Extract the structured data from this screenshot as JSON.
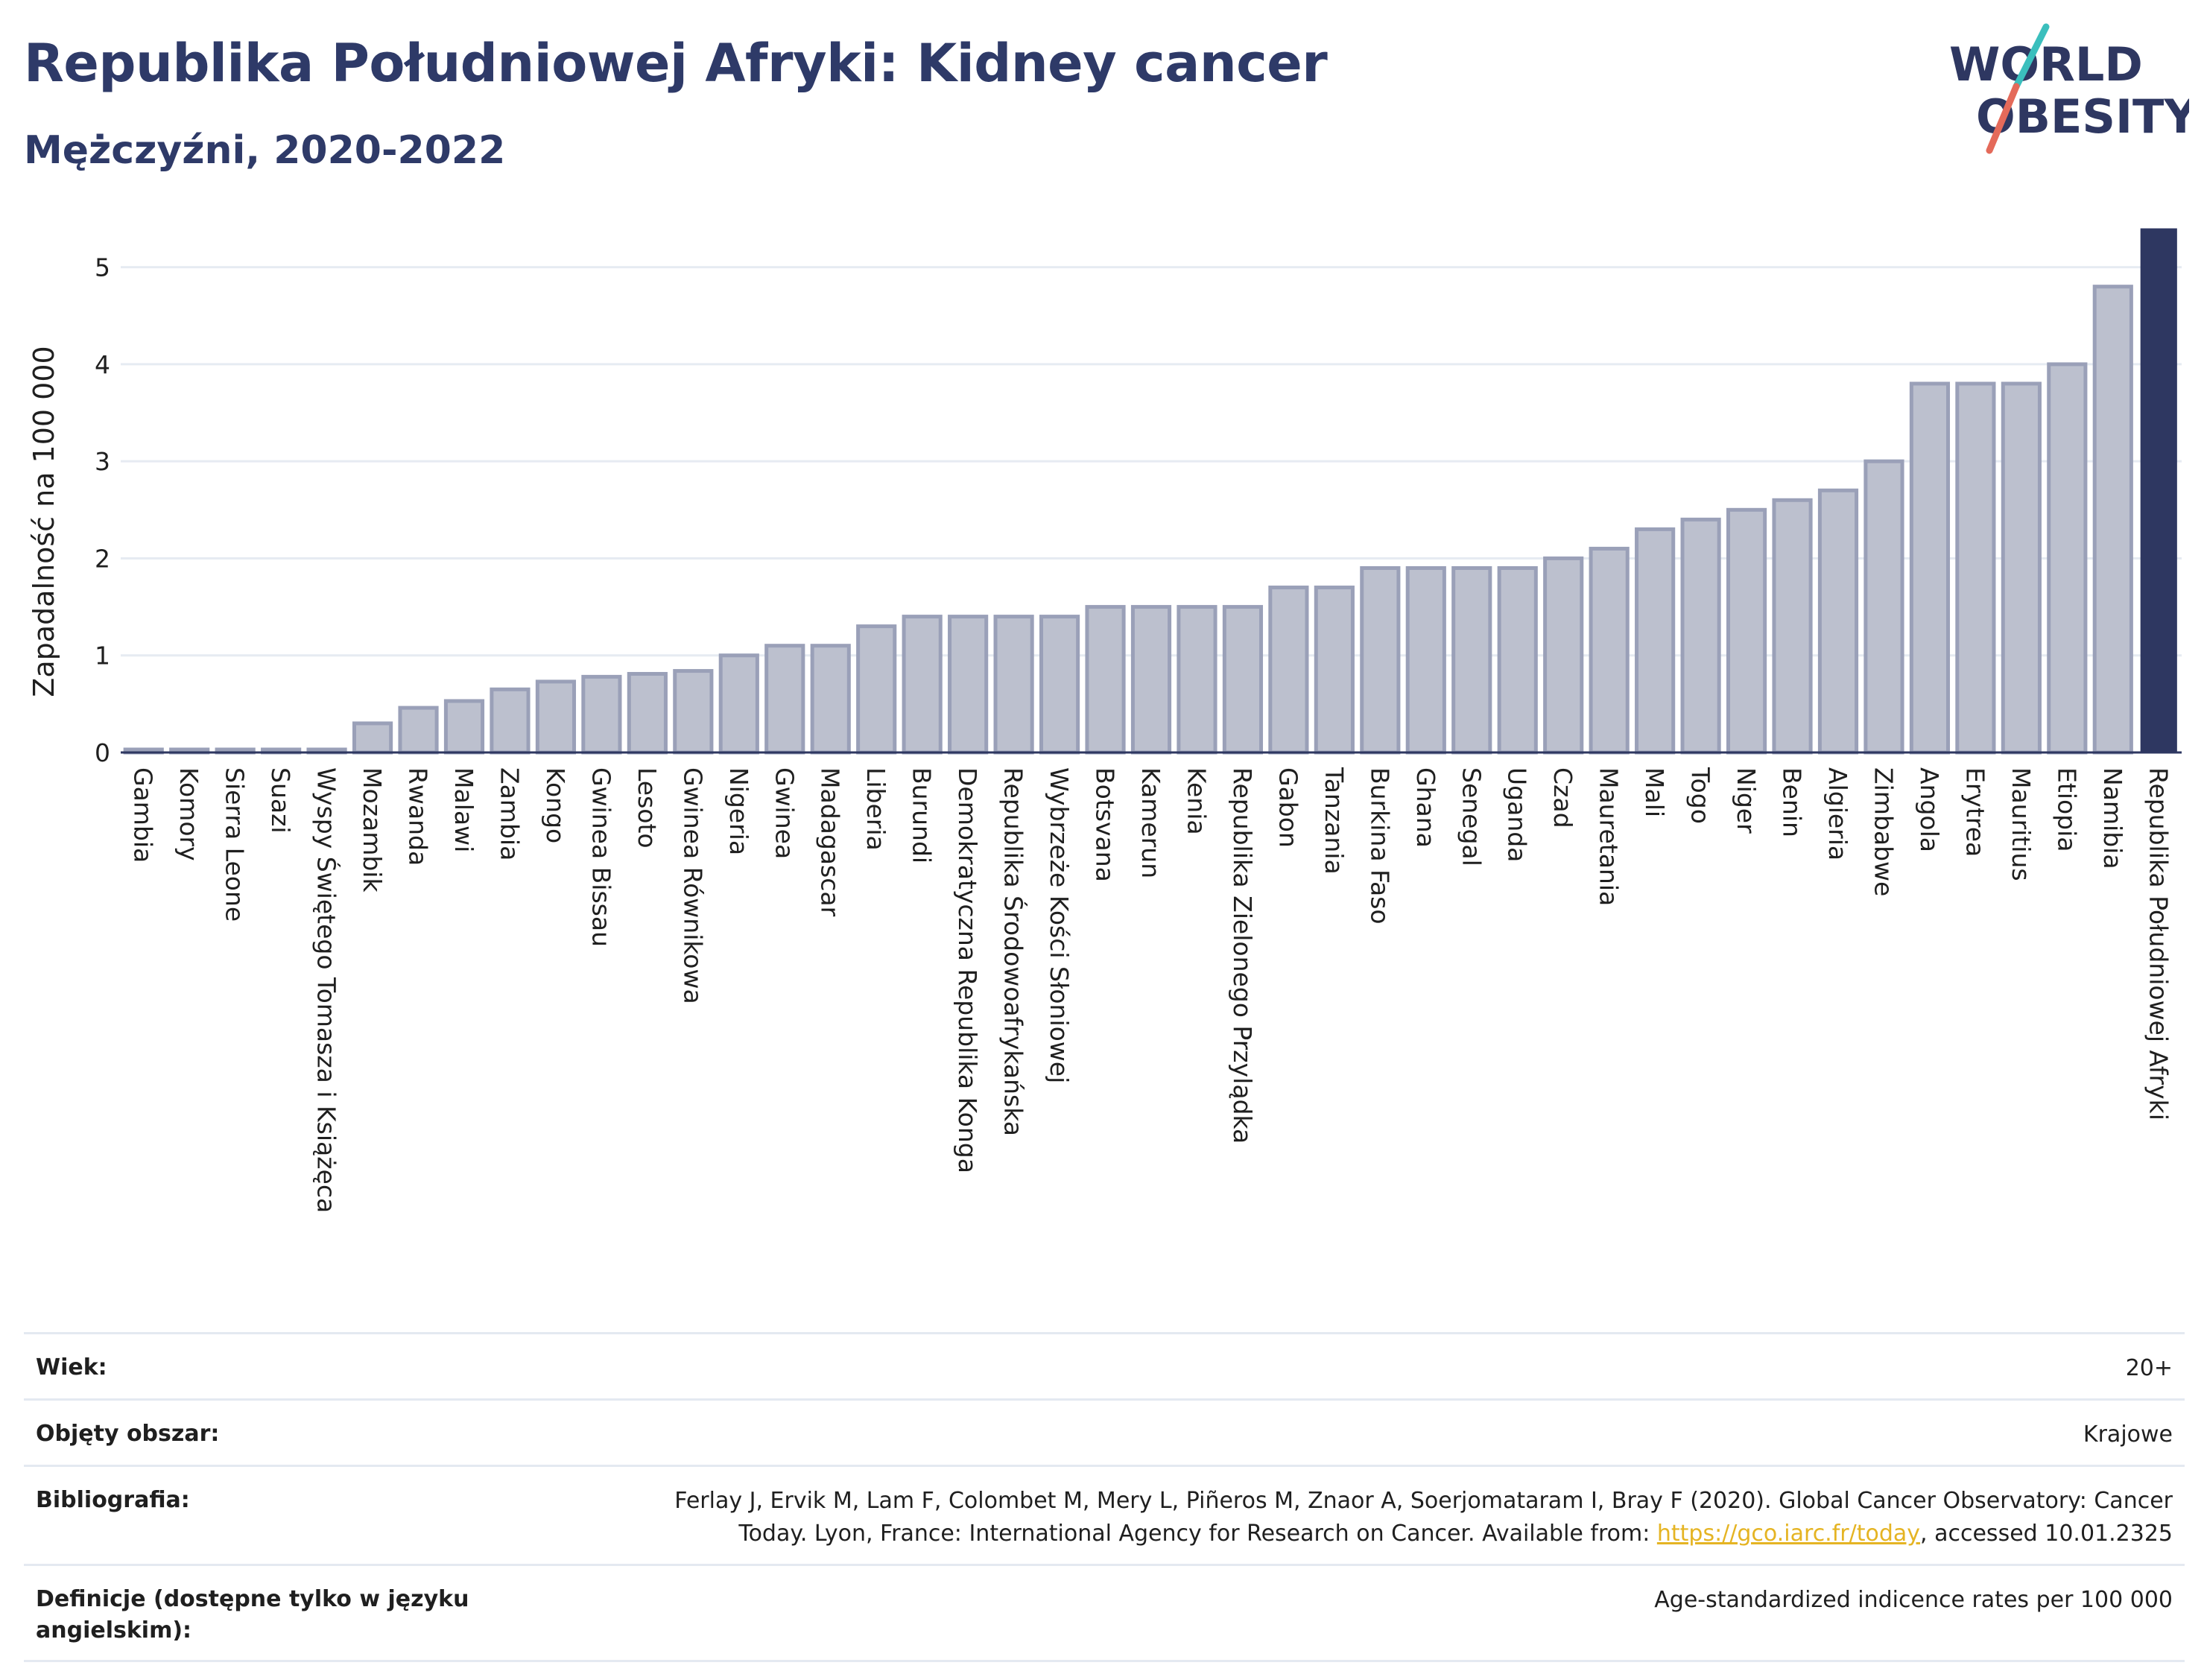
{
  "header": {
    "title": "Republika Południowej Afryki: Kidney cancer",
    "subtitle": "Mężczyźni, 2020-2022"
  },
  "logo": {
    "line1": "WORLD",
    "line2": "OBESITY",
    "accent_teal": "#3bbfbd",
    "accent_coral": "#e46a5a"
  },
  "chart_data": {
    "type": "bar",
    "ylabel": "Zapadalność na 100 000",
    "xlabel": "",
    "ylim": [
      0,
      5.45
    ],
    "yticks": [
      0,
      1,
      2,
      3,
      4,
      5
    ],
    "grid": true,
    "bar_color": "#bcc0ce",
    "bar_edge_color": "#9aa0b8",
    "highlight_color": "#2e3761",
    "highlight_category": "Republika Południowej Afryki",
    "categories": [
      "Gambia",
      "Komory",
      "Sierra Leone",
      "Suazi",
      "Wyspy Świętego Tomasza i Książęca",
      "Mozambik",
      "Rwanda",
      "Malawi",
      "Zambia",
      "Kongo",
      "Gwinea Bissau",
      "Lesoto",
      "Gwinea Równikowa",
      "Nigeria",
      "Gwinea",
      "Madagascar",
      "Liberia",
      "Burundi",
      "Demokratyczna Republika Konga",
      "Republika Środowoafrykańska",
      "Wybrzeże Kości Słoniowej",
      "Botsvana",
      "Kamerun",
      "Kenia",
      "Republika Zielonego Przylądka",
      "Gabon",
      "Tanzania",
      "Burkina Faso",
      "Ghana",
      "Senegal",
      "Uganda",
      "Czad",
      "Mauretania",
      "Mali",
      "Togo",
      "Niger",
      "Benin",
      "Algieria",
      "Zimbabwe",
      "Angola",
      "Erytrea",
      "Mauritius",
      "Etiopia",
      "Namibia",
      "Republika Południowej Afryki"
    ],
    "values": [
      0.0,
      0.0,
      0.0,
      0.0,
      0.0,
      0.3,
      0.46,
      0.53,
      0.65,
      0.73,
      0.78,
      0.81,
      0.84,
      1.0,
      1.1,
      1.1,
      1.3,
      1.4,
      1.4,
      1.4,
      1.4,
      1.5,
      1.5,
      1.5,
      1.5,
      1.7,
      1.7,
      1.9,
      1.9,
      1.9,
      1.9,
      2.0,
      2.1,
      2.3,
      2.4,
      2.5,
      2.6,
      2.7,
      3.0,
      3.8,
      3.8,
      3.8,
      4.0,
      4.8,
      5.4
    ]
  },
  "meta": [
    {
      "label": "Wiek:",
      "value": "20+"
    },
    {
      "label": "Objęty obszar:",
      "value": "Krajowe"
    },
    {
      "label": "Bibliografia:",
      "value_line1": "Ferlay J, Ervik M, Lam F, Colombet M, Mery L, Piñeros M, Znaor A, Soerjomataram I, Bray F (2020). Global Cancer Observatory: Cancer",
      "value_line2_pre": "Today. Lyon, France: International Agency for Research on Cancer. Available from: ",
      "link": "https://gco.iarc.fr/today",
      "value_line2_post": ", accessed 10.01.2325"
    },
    {
      "label": "Definicje (dostępne tylko w języku angielskim):",
      "value": "Age-standardized indicence rates per 100 000"
    }
  ]
}
